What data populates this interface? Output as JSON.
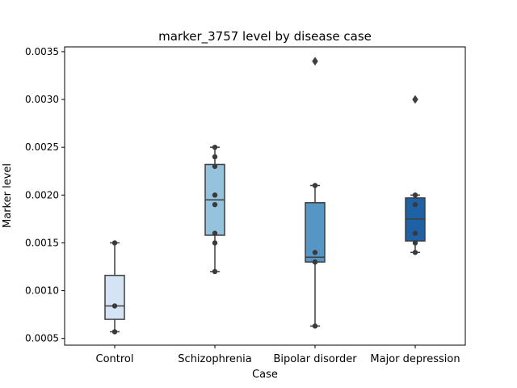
{
  "chart_data": {
    "type": "box",
    "title": "marker_3757 level by disease case",
    "xlabel": "Case",
    "ylabel": "Marker level",
    "ylim": [
      0.00043,
      0.00355
    ],
    "yticks": [
      0.0005,
      0.001,
      0.0015,
      0.002,
      0.0025,
      0.003,
      0.0035
    ],
    "ytick_labels": [
      "0.0005",
      "0.0010",
      "0.0015",
      "0.0020",
      "0.0025",
      "0.0030",
      "0.0035"
    ],
    "categories": [
      "Control",
      "Schizophrenia",
      "Bipolar disorder",
      "Major depression"
    ],
    "boxes": [
      {
        "category": "Control",
        "color": "#d4e4f4",
        "whisker_low": 0.00057,
        "q1": 0.0007,
        "median": 0.00084,
        "q3": 0.00116,
        "whisker_high": 0.0015,
        "outliers": [],
        "points": [
          0.00057,
          0.00084,
          0.0015
        ]
      },
      {
        "category": "Schizophrenia",
        "color": "#95c2dd",
        "whisker_low": 0.0012,
        "q1": 0.00158,
        "median": 0.00195,
        "q3": 0.00232,
        "whisker_high": 0.0025,
        "outliers": [],
        "points": [
          0.0012,
          0.0015,
          0.0016,
          0.0019,
          0.002,
          0.0023,
          0.0024,
          0.0025
        ]
      },
      {
        "category": "Bipolar disorder",
        "color": "#5596c4",
        "whisker_low": 0.00063,
        "q1": 0.0013,
        "median": 0.00135,
        "q3": 0.00192,
        "whisker_high": 0.0021,
        "outliers": [
          0.0034
        ],
        "points": [
          0.00063,
          0.0013,
          0.0013,
          0.0014,
          0.0021
        ]
      },
      {
        "category": "Major depression",
        "color": "#1f61a5",
        "whisker_low": 0.0014,
        "q1": 0.00152,
        "median": 0.00175,
        "q3": 0.00197,
        "whisker_high": 0.002,
        "outliers": [
          0.003
        ],
        "points": [
          0.0014,
          0.0015,
          0.0016,
          0.0019,
          0.002
        ]
      }
    ],
    "grid": false,
    "legend": "none"
  }
}
